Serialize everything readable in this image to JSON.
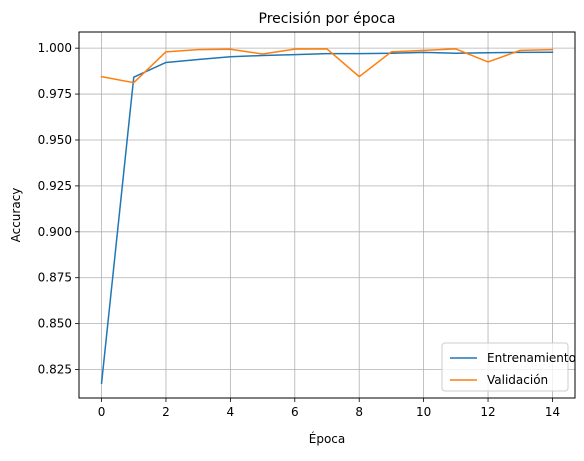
{
  "chart_data": {
    "type": "line",
    "title": "Precisión por época",
    "xlabel": "Época",
    "ylabel": "Accuracy",
    "xlim": [
      -0.7,
      14.7
    ],
    "ylim": [
      0.8095,
      1.0088
    ],
    "xticks": [
      0,
      2,
      4,
      6,
      8,
      10,
      12,
      14
    ],
    "xtick_labels": [
      "0",
      "2",
      "4",
      "6",
      "8",
      "10",
      "12",
      "14"
    ],
    "yticks": [
      0.825,
      0.85,
      0.875,
      0.9,
      0.925,
      0.95,
      0.975,
      1.0
    ],
    "ytick_labels": [
      "0.825",
      "0.850",
      "0.875",
      "0.900",
      "0.925",
      "0.950",
      "0.975",
      "1.000"
    ],
    "grid": true,
    "legend_position": "lower-right",
    "x": [
      0,
      1,
      2,
      3,
      4,
      5,
      6,
      7,
      8,
      9,
      10,
      11,
      12,
      13,
      14
    ],
    "series": [
      {
        "name": "Entrenamiento",
        "color": "#1f77b4",
        "values": [
          0.8175,
          0.9842,
          0.9922,
          0.9938,
          0.9953,
          0.996,
          0.9965,
          0.997,
          0.997,
          0.9972,
          0.9977,
          0.9972,
          0.9975,
          0.9977,
          0.9978
        ]
      },
      {
        "name": "Validación",
        "color": "#ff7f0e",
        "values": [
          0.9845,
          0.9812,
          0.998,
          0.9992,
          0.9994,
          0.9968,
          0.9995,
          0.9996,
          0.9845,
          0.998,
          0.9988,
          0.9996,
          0.9925,
          0.9988,
          0.9992
        ]
      }
    ]
  }
}
